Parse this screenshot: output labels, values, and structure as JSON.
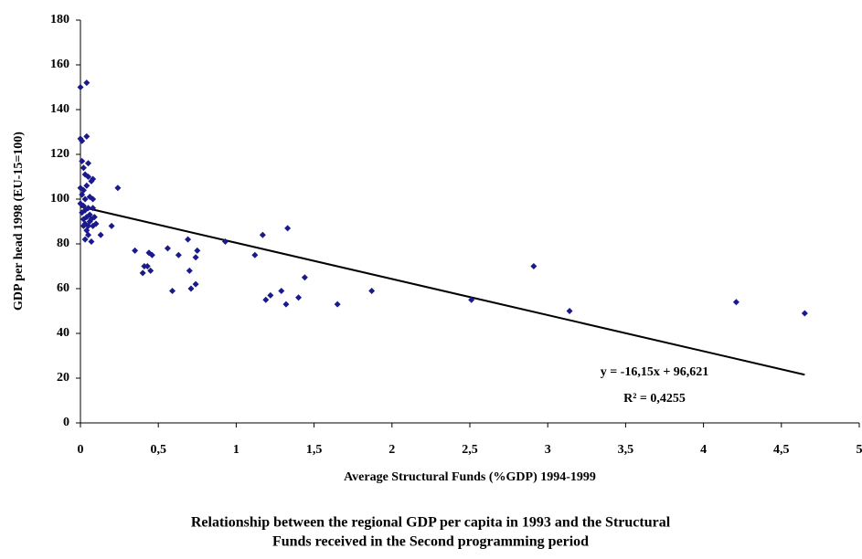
{
  "chart_data": {
    "type": "scatter",
    "xlabel": "Average Structural Funds (%GDP) 1994-1999",
    "ylabel": "GDP per head 1998  (EU-15=100)",
    "caption": [
      "Relationship between the regional GDP per capita in 1993 and the Structural",
      "Funds received in the Second programming period"
    ],
    "color": "#1a1a8c",
    "x": [
      0,
      0.04,
      0,
      0.01,
      0.04,
      0.01,
      0.05,
      0.02,
      0.03,
      0.05,
      0.08,
      0.07,
      0,
      0.02,
      0.04,
      0.01,
      0.03,
      0.08,
      0.06,
      0,
      0.02,
      0.05,
      0.08,
      0.03,
      0.01,
      0.06,
      0.04,
      0.02,
      0.07,
      0.09,
      0.03,
      0.05,
      0.08,
      0.1,
      0.04,
      0.02,
      0.06,
      0.03,
      0.07,
      0.05,
      0.13,
      0.2,
      0.24,
      0.35,
      0.4,
      0.41,
      0.43,
      0.44,
      0.45,
      0.46,
      0.56,
      0.59,
      0.63,
      0.69,
      0.7,
      0.71,
      0.74,
      0.74,
      0.75,
      0.93,
      1.12,
      1.17,
      1.19,
      1.22,
      1.29,
      1.32,
      1.33,
      1.4,
      1.44,
      1.65,
      1.87,
      2.51,
      2.91,
      3.14,
      4.21,
      4.65
    ],
    "values": [
      150,
      152,
      127,
      126,
      128,
      117,
      116,
      114,
      111,
      110,
      109,
      108,
      105,
      104,
      106,
      102,
      100,
      100,
      101,
      98,
      97,
      96,
      96,
      95,
      94,
      93,
      92,
      91,
      91,
      92,
      89,
      88,
      88,
      89,
      86,
      88,
      90,
      82,
      81,
      84,
      84,
      88,
      105,
      77,
      67,
      70,
      70,
      76,
      68,
      75,
      78,
      59,
      75,
      82,
      68,
      60,
      62,
      74,
      77,
      81,
      75,
      84,
      55,
      57,
      59,
      53,
      87,
      56,
      65,
      53,
      59,
      55,
      70,
      50,
      54,
      49
    ],
    "trendline": {
      "slope": -16.15,
      "intercept": 96.621,
      "x": [
        0,
        4.65
      ]
    },
    "annotations": [
      "y = -16,15x + 96,621",
      "R² = 0,4255"
    ],
    "xlim": [
      0,
      5
    ],
    "xticks": [
      0,
      {
        "value": 0.5,
        "label": "0,5"
      },
      1,
      {
        "value": 1.5,
        "label": "1,5"
      },
      2,
      {
        "value": 2.5,
        "label": "2,5"
      },
      3,
      {
        "value": 3.5,
        "label": "3,5"
      },
      4,
      {
        "value": 4.5,
        "label": "4,5"
      },
      5
    ],
    "ylim": [
      0,
      180
    ],
    "yticks": [
      0,
      20,
      40,
      60,
      80,
      100,
      120,
      140,
      160,
      180
    ],
    "grid": false
  }
}
